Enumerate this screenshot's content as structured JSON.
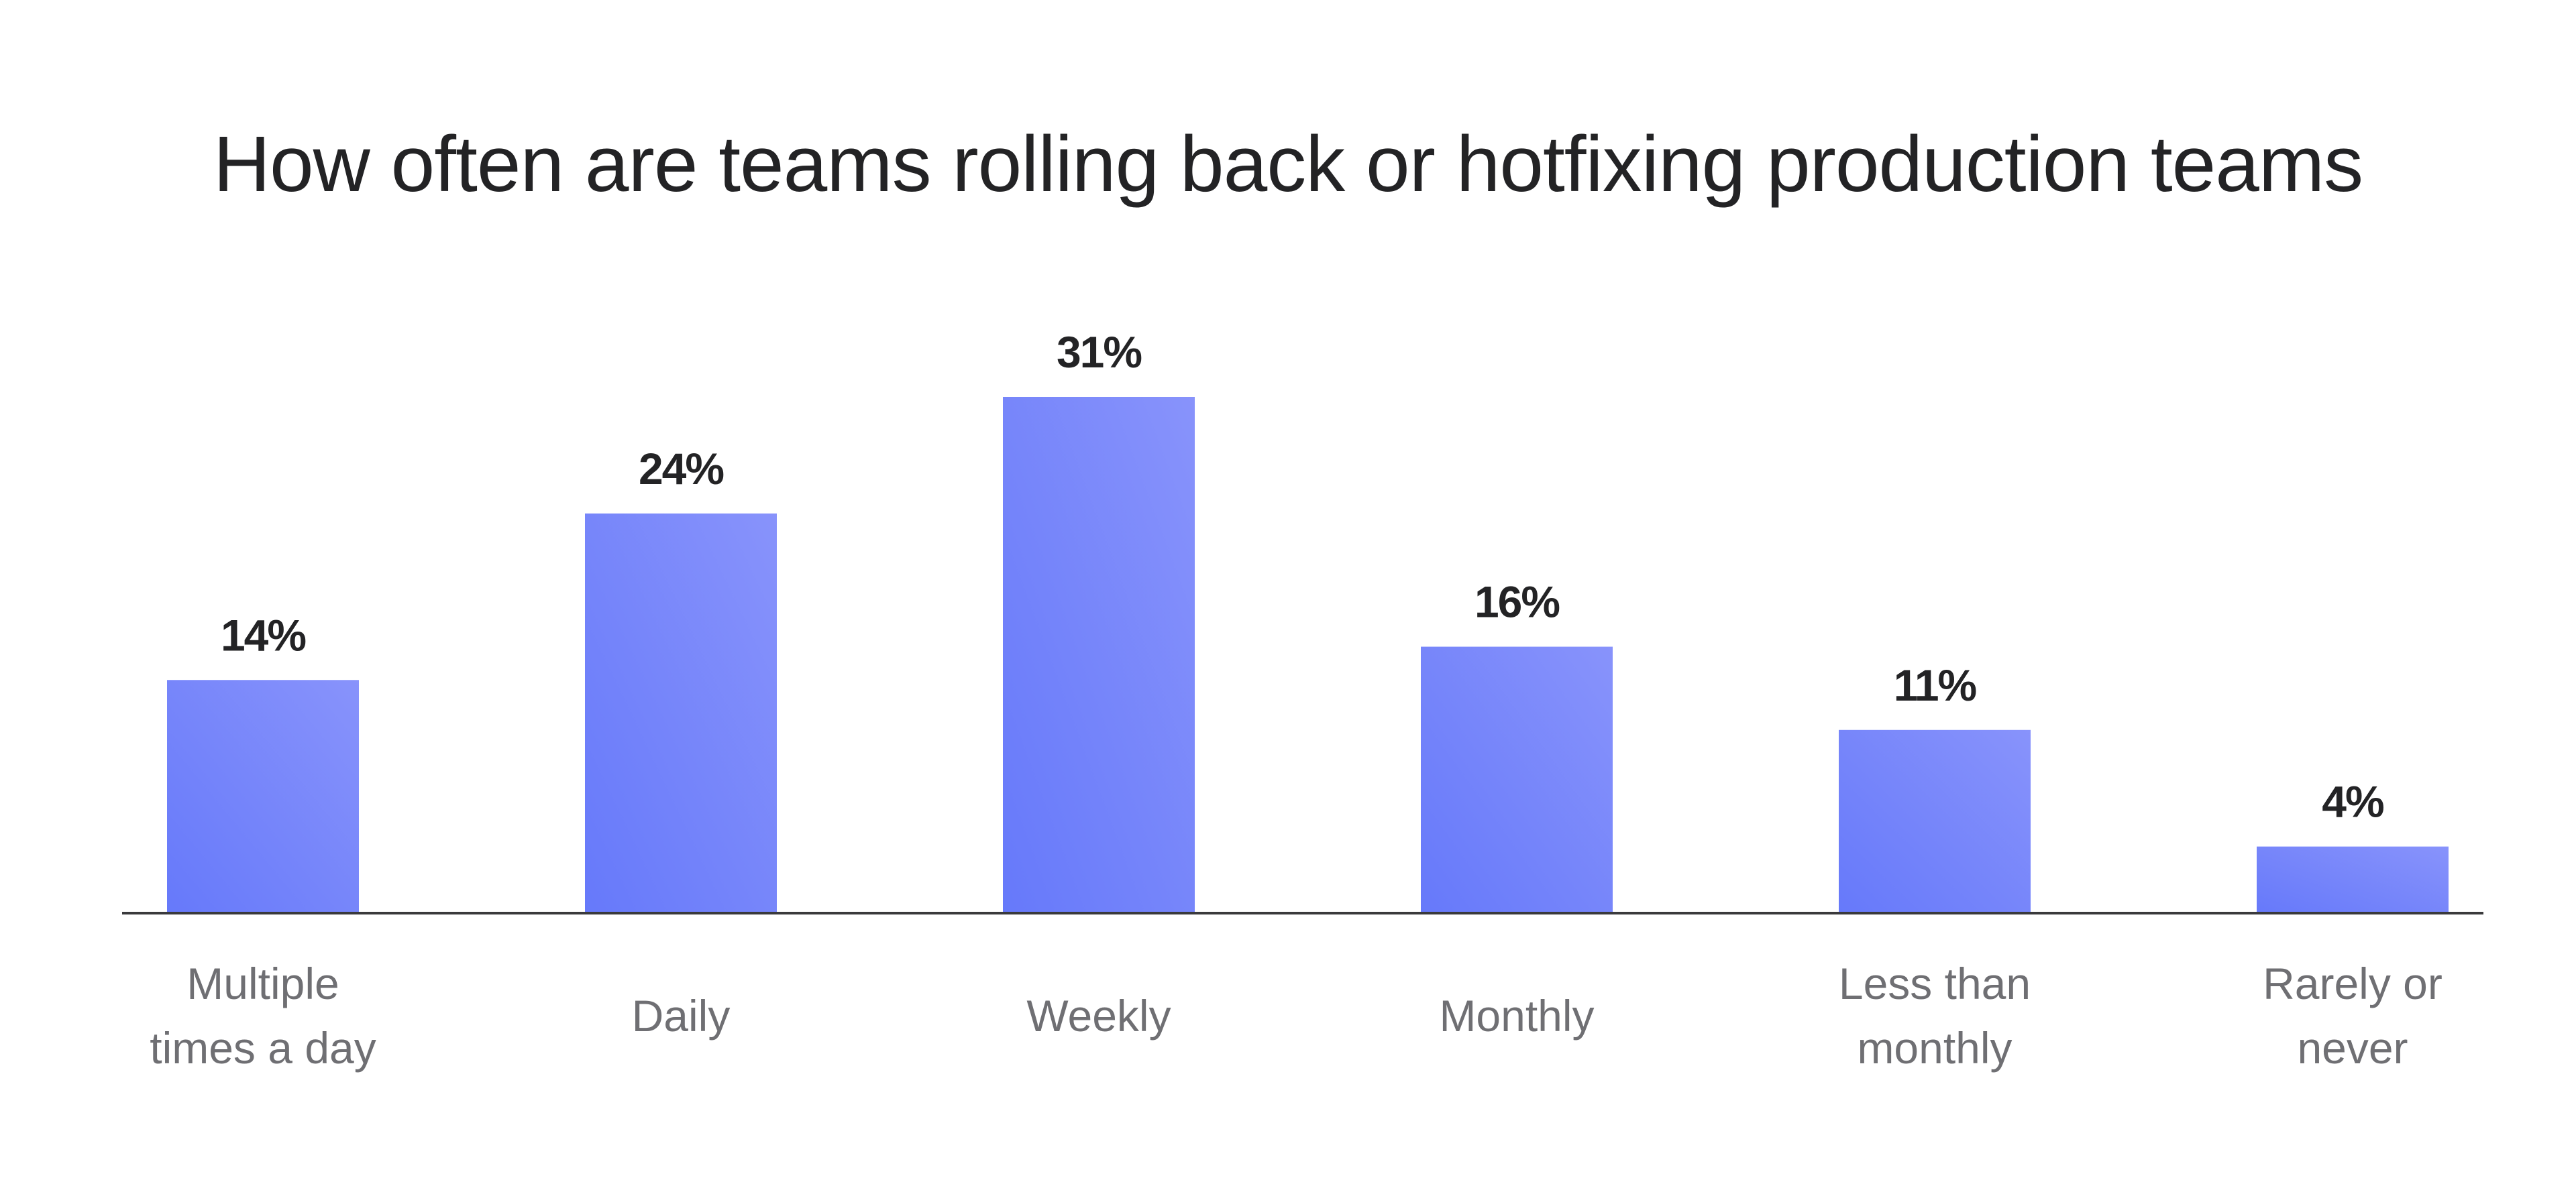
{
  "chart_data": {
    "type": "bar",
    "title": "How often are teams rolling back or hotfixing production teams",
    "categories": [
      [
        "Multiple",
        "times a day"
      ],
      [
        "Daily"
      ],
      [
        "Weekly"
      ],
      [
        "Monthly"
      ],
      [
        "Less than",
        "monthly"
      ],
      [
        "Rarely or",
        "never"
      ]
    ],
    "values": [
      14,
      24,
      31,
      16,
      11,
      4
    ],
    "value_labels": [
      "14%",
      "24%",
      "31%",
      "16%",
      "11%",
      "4%"
    ],
    "xlabel": "",
    "ylabel": "",
    "ylim": [
      0,
      31
    ],
    "grid": false,
    "legend": "none",
    "colors": {
      "bar_top": "#8893fb",
      "bar_bottom": "#6679fa",
      "axis": "#3a3a3c",
      "value_text": "#232325",
      "category_text": "#6f6f73",
      "title_text": "#232325"
    }
  }
}
